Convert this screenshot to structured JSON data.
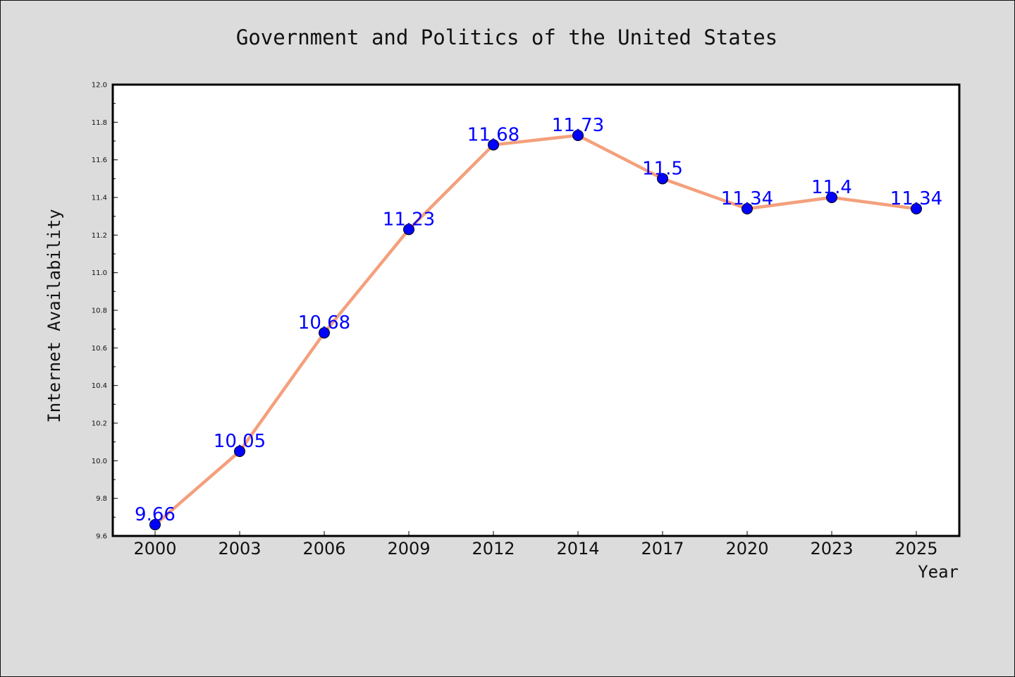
{
  "chart_data": {
    "type": "line",
    "title": "Government and Politics of the United States",
    "xlabel": "Year",
    "ylabel": "Internet Availability",
    "categories": [
      "2000",
      "2003",
      "2006",
      "2009",
      "2012",
      "2014",
      "2017",
      "2020",
      "2023",
      "2025"
    ],
    "series": [
      {
        "values": [
          9.66,
          10.05,
          10.68,
          11.23,
          11.68,
          11.73,
          11.5,
          11.34,
          11.4,
          11.34
        ],
        "data_labels": [
          "9.66",
          "10.05",
          "10.68",
          "11.23",
          "11.68",
          "11.73",
          "11.5",
          "11.34",
          "11.4",
          "11.34"
        ]
      }
    ],
    "ylim": [
      9.6,
      12.0
    ],
    "y_ticks": [
      "9.6",
      "9.8",
      "10.0",
      "10.2",
      "10.4",
      "10.6",
      "10.8",
      "11.0",
      "11.2",
      "11.4",
      "11.6",
      "11.8",
      "12.0"
    ],
    "grid": false,
    "legend": "none",
    "colors": {
      "line": "#f4a07c",
      "marker": "#0000ff",
      "label": "#0000ff",
      "plot_background": "#ffffff",
      "figure_background": "#dcdcdc"
    }
  }
}
